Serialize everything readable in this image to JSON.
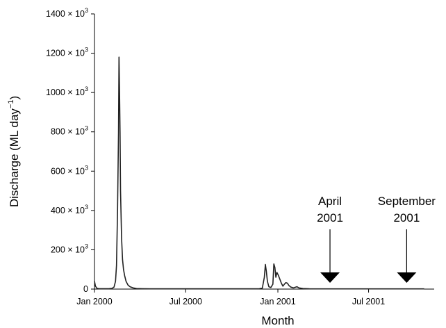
{
  "chart_data": {
    "type": "line",
    "xlabel": "Month",
    "ylabel": "Discharge (ML day",
    "ylabel_sup": "−1",
    "ylabel_close": ")",
    "ylim": [
      0,
      1400000
    ],
    "xlim": [
      "2000-01-01",
      "2001-11-30"
    ],
    "grid": false,
    "x_ticks": [
      {
        "date": "2000-01-01",
        "label": "Jan 2000"
      },
      {
        "date": "2000-07-01",
        "label": "Jul 2000"
      },
      {
        "date": "2001-01-01",
        "label": "Jan 2001"
      },
      {
        "date": "2001-07-01",
        "label": "Jul 2001"
      }
    ],
    "y_ticks": [
      {
        "value": 0,
        "label": "0"
      },
      {
        "value": 200000,
        "label": "200 × 10",
        "sup": "3"
      },
      {
        "value": 400000,
        "label": "400 × 10",
        "sup": "3"
      },
      {
        "value": 600000,
        "label": "600 × 10",
        "sup": "3"
      },
      {
        "value": 800000,
        "label": "800 × 10",
        "sup": "3"
      },
      {
        "value": 1000000,
        "label": "1000 × 10",
        "sup": "3"
      },
      {
        "value": 1200000,
        "label": "1200 × 10",
        "sup": "3"
      },
      {
        "value": 1400000,
        "label": "1400 × 10",
        "sup": "3"
      }
    ],
    "series": [
      {
        "points": [
          [
            "2000-01-01",
            40000
          ],
          [
            "2000-01-03",
            15000
          ],
          [
            "2000-01-06",
            4000
          ],
          [
            "2000-01-10",
            2000
          ],
          [
            "2000-01-20",
            2000
          ],
          [
            "2000-01-30",
            2000
          ],
          [
            "2000-02-05",
            4000
          ],
          [
            "2000-02-09",
            10000
          ],
          [
            "2000-02-12",
            40000
          ],
          [
            "2000-02-14",
            120000
          ],
          [
            "2000-02-16",
            400000
          ],
          [
            "2000-02-18",
            800000
          ],
          [
            "2000-02-19",
            1180000
          ],
          [
            "2000-02-20",
            1000000
          ],
          [
            "2000-02-21",
            800000
          ],
          [
            "2000-02-22",
            500000
          ],
          [
            "2000-02-24",
            260000
          ],
          [
            "2000-02-26",
            150000
          ],
          [
            "2000-02-28",
            100000
          ],
          [
            "2000-03-01",
            70000
          ],
          [
            "2000-03-04",
            40000
          ],
          [
            "2000-03-08",
            20000
          ],
          [
            "2000-03-12",
            12000
          ],
          [
            "2000-03-18",
            6000
          ],
          [
            "2000-03-25",
            3000
          ],
          [
            "2000-04-05",
            2000
          ],
          [
            "2000-04-20",
            1500
          ],
          [
            "2000-05-10",
            1500
          ],
          [
            "2000-06-01",
            1500
          ],
          [
            "2000-07-01",
            1500
          ],
          [
            "2000-08-01",
            1500
          ],
          [
            "2000-09-01",
            1500
          ],
          [
            "2000-10-01",
            1500
          ],
          [
            "2000-11-01",
            1500
          ],
          [
            "2000-11-25",
            2000
          ],
          [
            "2000-12-01",
            5000
          ],
          [
            "2000-12-05",
            60000
          ],
          [
            "2000-12-07",
            125000
          ],
          [
            "2000-12-09",
            90000
          ],
          [
            "2000-12-11",
            40000
          ],
          [
            "2000-12-14",
            12000
          ],
          [
            "2000-12-18",
            8000
          ],
          [
            "2000-12-22",
            25000
          ],
          [
            "2000-12-24",
            128000
          ],
          [
            "2000-12-26",
            110000
          ],
          [
            "2000-12-28",
            60000
          ],
          [
            "2000-12-30",
            85000
          ],
          [
            "2001-01-02",
            70000
          ],
          [
            "2001-01-05",
            50000
          ],
          [
            "2001-01-08",
            30000
          ],
          [
            "2001-01-11",
            15000
          ],
          [
            "2001-01-14",
            25000
          ],
          [
            "2001-01-17",
            33000
          ],
          [
            "2001-01-20",
            30000
          ],
          [
            "2001-01-23",
            18000
          ],
          [
            "2001-01-27",
            10000
          ],
          [
            "2001-02-01",
            6000
          ],
          [
            "2001-02-08",
            12000
          ],
          [
            "2001-02-12",
            6000
          ],
          [
            "2001-02-20",
            3000
          ],
          [
            "2001-03-05",
            1500
          ],
          [
            "2001-04-01",
            1000
          ],
          [
            "2001-05-01",
            1000
          ],
          [
            "2001-06-01",
            1000
          ],
          [
            "2001-07-01",
            1000
          ],
          [
            "2001-08-01",
            1000
          ],
          [
            "2001-09-01",
            1000
          ],
          [
            "2001-10-01",
            1000
          ],
          [
            "2001-10-20",
            1000
          ]
        ]
      }
    ],
    "annotations": [
      {
        "lines": [
          "April",
          "2001"
        ],
        "date": "2001-04-15",
        "marker": "arrow-down"
      },
      {
        "lines": [
          "September",
          "2001"
        ],
        "date": "2001-09-15",
        "marker": "arrow-down"
      }
    ]
  }
}
